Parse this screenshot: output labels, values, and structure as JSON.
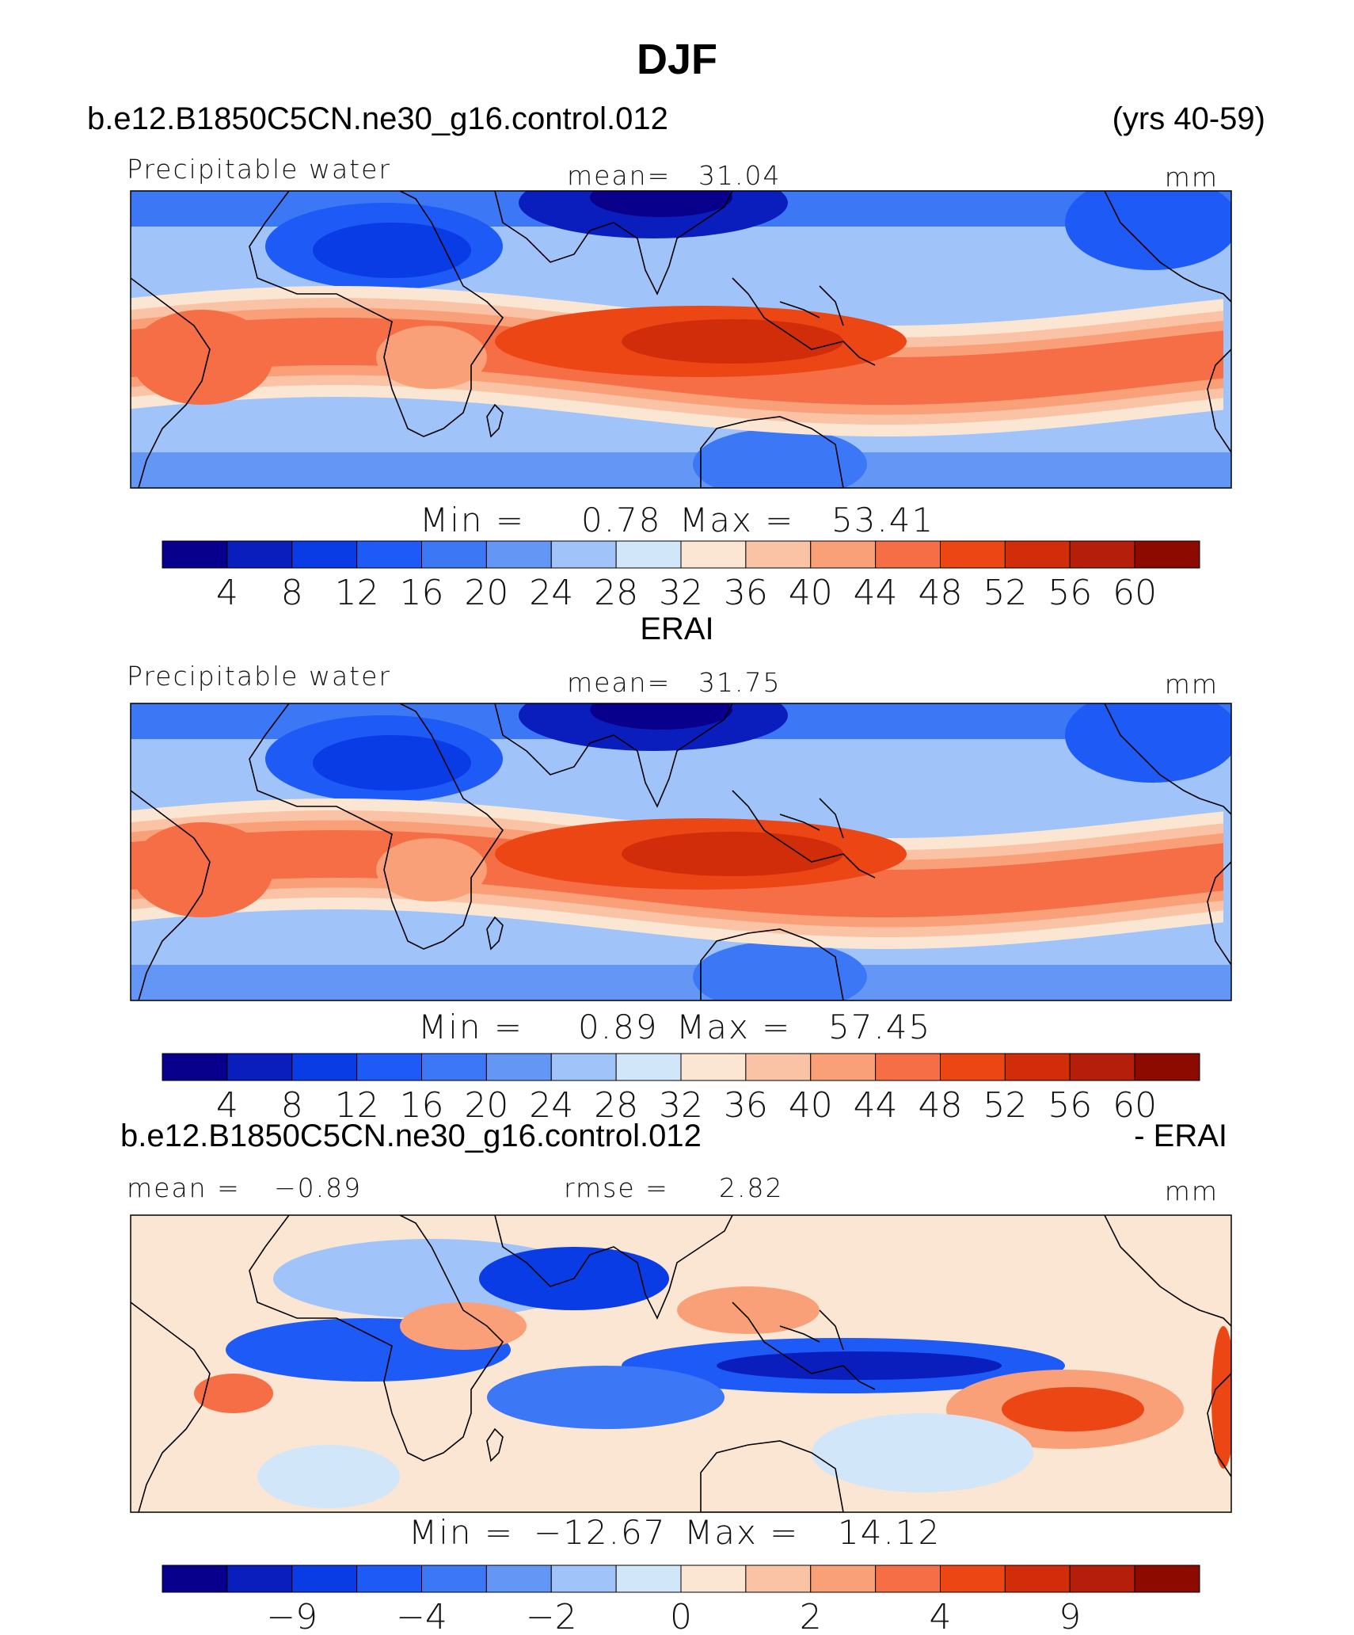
{
  "page_title": "DJF",
  "chart_data": [
    {
      "type": "heatmap",
      "panel_title": "b.e12.B1850C5CN.ne30_g16.control.012",
      "panel_subtitle": "(yrs 40-59)",
      "variable": "Precipitable water",
      "mean_label": "mean=",
      "mean_value": "31.04",
      "units": "mm",
      "min_label": "Min =",
      "min_value": "0.78",
      "max_label": "Max =",
      "max_value": "53.41",
      "levels": [
        4,
        8,
        12,
        16,
        20,
        24,
        28,
        32,
        36,
        40,
        44,
        48,
        52,
        56,
        60
      ],
      "tick_labels": [
        "4",
        "8",
        "12",
        "16",
        "20",
        "24",
        "28",
        "32",
        "36",
        "40",
        "44",
        "48",
        "52",
        "56",
        "60"
      ]
    },
    {
      "type": "heatmap",
      "panel_title": "ERAI",
      "variable": "Precipitable water",
      "mean_label": "mean=",
      "mean_value": "31.75",
      "units": "mm",
      "min_label": "Min =",
      "min_value": "0.89",
      "max_label": "Max =",
      "max_value": "57.45",
      "levels": [
        4,
        8,
        12,
        16,
        20,
        24,
        28,
        32,
        36,
        40,
        44,
        48,
        52,
        56,
        60
      ],
      "tick_labels": [
        "4",
        "8",
        "12",
        "16",
        "20",
        "24",
        "28",
        "32",
        "36",
        "40",
        "44",
        "48",
        "52",
        "56",
        "60"
      ]
    },
    {
      "type": "heatmap",
      "panel_title": "b.e12.B1850C5CN.ne30_g16.control.012",
      "panel_subtitle": "- ERAI",
      "mean_label": "mean =",
      "mean_value": "−0.89",
      "rmse_label": "rmse =",
      "rmse_value": "2.82",
      "units": "mm",
      "min_label": "Min =",
      "min_value": "−12.67",
      "max_label": "Max =",
      "max_value": "14.12",
      "levels": [
        -9,
        -6,
        -4,
        -3,
        -2,
        -1,
        0,
        1,
        2,
        3,
        4,
        6,
        9,
        12
      ],
      "tick_labels": [
        "−9",
        "−4",
        "−2",
        "0",
        "2",
        "4",
        "9"
      ]
    }
  ],
  "palette": [
    "#08008c",
    "#0a1ebe",
    "#0a3ce6",
    "#1e5af5",
    "#3c78f5",
    "#6496f5",
    "#a0c3fa",
    "#d2e6fa",
    "#fae6d2",
    "#fac3a5",
    "#faa078",
    "#f56e46",
    "#eb4614",
    "#d22d0a",
    "#b41e0a",
    "#8c0a00"
  ]
}
